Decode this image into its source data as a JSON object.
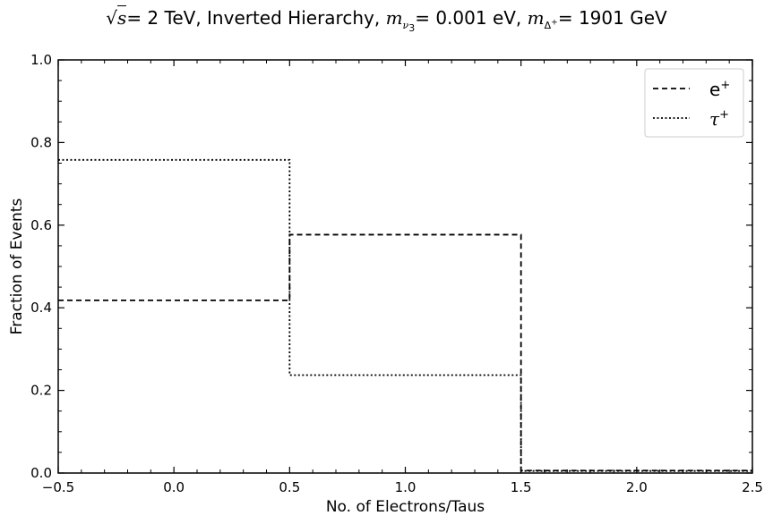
{
  "chart_data": {
    "type": "step",
    "title": {
      "sqrt_s": "s",
      "energy": "= 2 TeV, Inverted Hierarchy, ",
      "m": "m",
      "nu_sub": "ν",
      "nu3_sub": "3",
      "mass_nu": "= 0.001 eV, ",
      "delta_sub": "Δ",
      "delta_sup": "+",
      "mass_delta": "= 1901 GeV"
    },
    "xlabel": "No. of Electrons/Taus",
    "ylabel": "Fraction of Events",
    "xlim": [
      -0.5,
      2.5
    ],
    "ylim": [
      0.0,
      1.0
    ],
    "xticks": [
      -0.5,
      0.0,
      0.5,
      1.0,
      1.5,
      2.0,
      2.5
    ],
    "xtick_labels": [
      "−0.5",
      "0.0",
      "0.5",
      "1.0",
      "1.5",
      "2.0",
      "2.5"
    ],
    "yticks": [
      0.0,
      0.2,
      0.4,
      0.6,
      0.8,
      1.0
    ],
    "ytick_labels": [
      "0.0",
      "0.2",
      "0.4",
      "0.6",
      "0.8",
      "1.0"
    ],
    "bin_edges": [
      -0.5,
      0.5,
      1.5,
      2.5
    ],
    "series": [
      {
        "name": "e⁺",
        "label_base": "e",
        "label_sup": "+",
        "style": "dashed",
        "values": [
          0.418,
          0.577,
          0.006
        ]
      },
      {
        "name": "τ⁺",
        "label_base": "τ",
        "label_sup": "+",
        "style": "dotted",
        "values": [
          0.758,
          0.237,
          0.005
        ]
      }
    ],
    "legend_position": "upper right",
    "grid": false
  }
}
